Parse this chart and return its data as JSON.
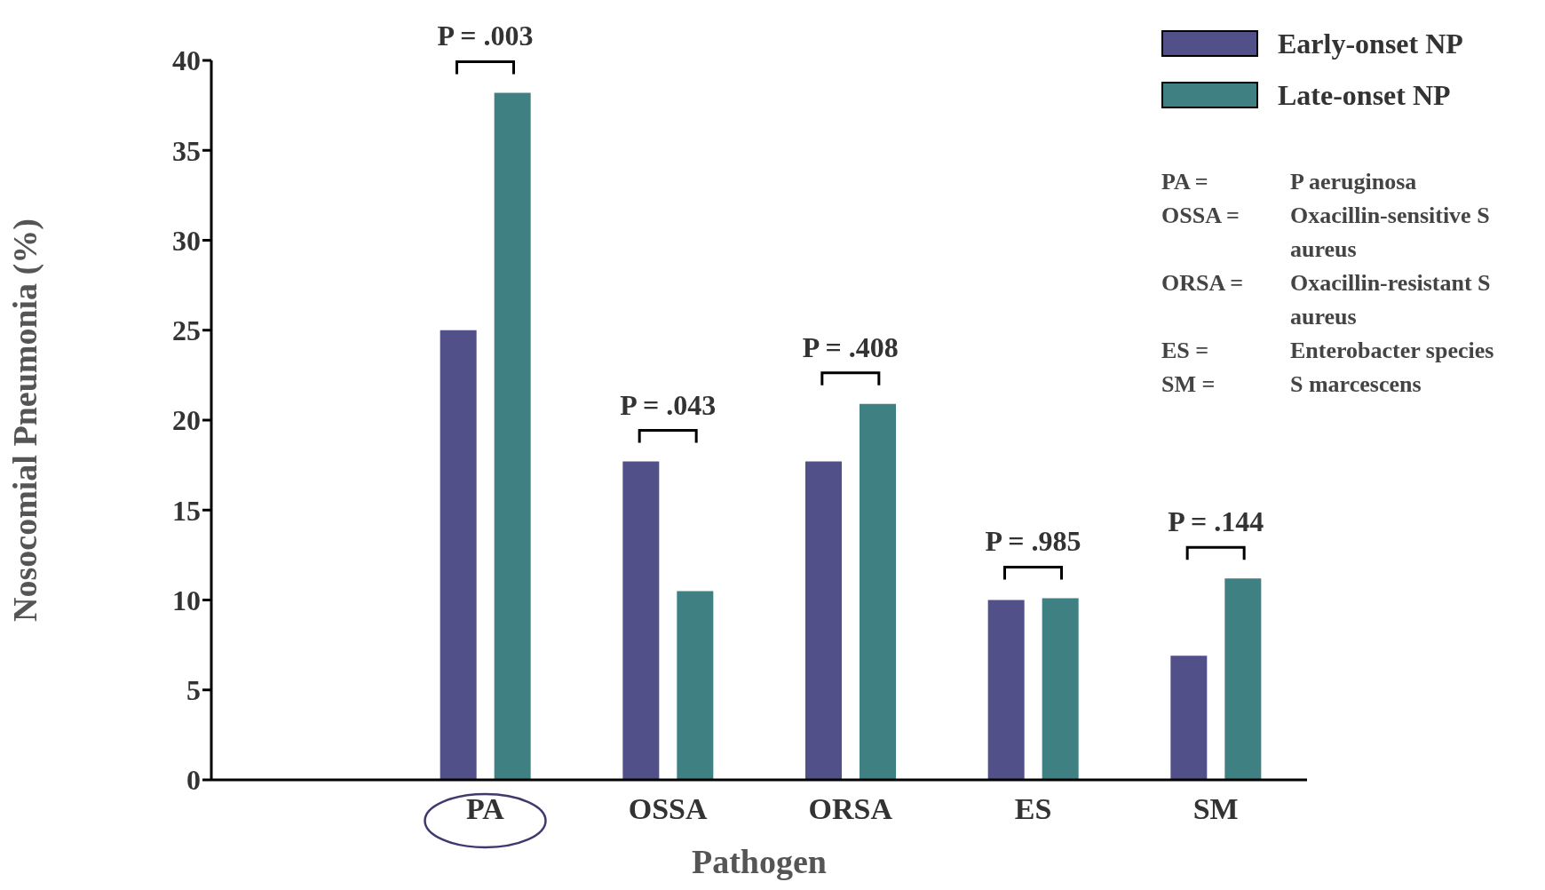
{
  "chart_data": {
    "type": "bar",
    "xlabel": "Pathogen",
    "ylabel": "Nosocomial Pneumonia (%)",
    "categories": [
      null,
      "PA",
      "OSSA",
      "ORSA",
      "ES",
      "SM"
    ],
    "series": [
      {
        "name": "Early-onset NP",
        "color": "#525089",
        "values": [
          null,
          25,
          17.7,
          17.7,
          10,
          6.9
        ]
      },
      {
        "name": "Late-onset NP",
        "color": "#3f8183",
        "values": [
          null,
          38.2,
          10.5,
          20.9,
          10.1,
          11.2
        ]
      }
    ],
    "ylim": [
      0,
      40
    ],
    "yticks": [
      0,
      5,
      10,
      15,
      20,
      25,
      30,
      35,
      40
    ],
    "grid": false,
    "legend": "top right",
    "annotations": [
      "P = .003",
      "P = .043",
      "P = .408",
      "P = .985",
      "P = .144",
      "PA =",
      "P aeruginosa",
      "OSSA =",
      "Oxacillin-sensitive S aureus",
      "ORSA =",
      "Oxacillin-resistant S aureus",
      "ES =",
      "Enterobacter species",
      "SM =",
      "S marcescens"
    ]
  }
}
